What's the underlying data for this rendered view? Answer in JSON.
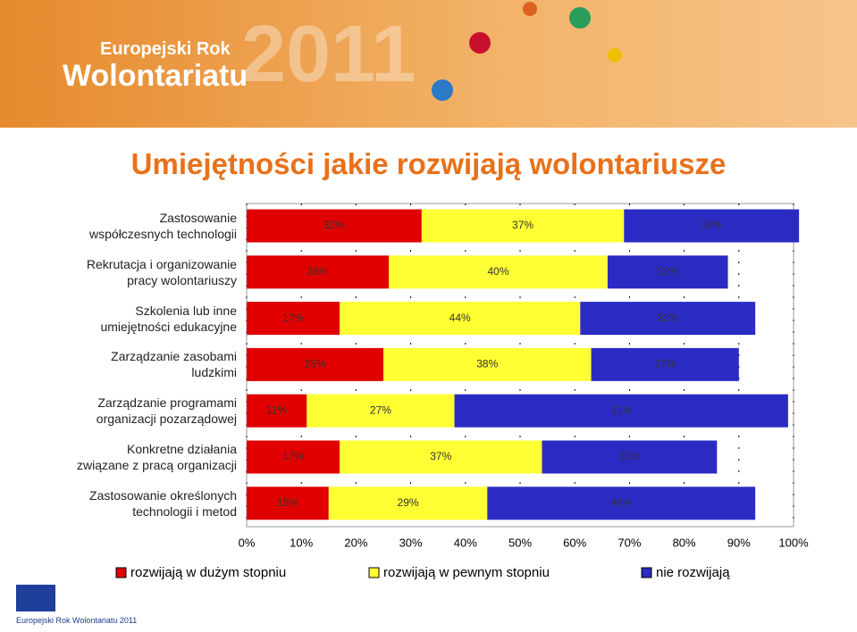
{
  "header": {
    "line1": "Europejski Rok",
    "line2": "Wolontariatu",
    "year": "2011",
    "footer_logo": "Europejski Rok Wolontariatu 2011"
  },
  "chart_data": {
    "type": "stacked-bar-horizontal",
    "title": "Umiejętności jakie rozwijają wolontariusze",
    "categories": [
      "Zastosowanie\nwspółczesnych technologii",
      "Rekrutacja i organizowanie\npracy wolontariuszy",
      "Szkolenia lub inne\numiejętności edukacyjne",
      "Zarządzanie zasobami\nludzkimi",
      "Zarządzanie programami\norganizacji pozarządowej",
      "Konkretne działania\nzwiązane z pracą organizacji",
      "Zastosowanie określonych\ntechnologii i metod"
    ],
    "series": [
      {
        "name": "rozwijają w dużym stopniu",
        "color": "#e00000",
        "values": [
          32,
          26,
          17,
          25,
          11,
          17,
          15
        ],
        "value_labels": [
          "32%",
          "26%",
          "17%",
          "25%",
          "11%",
          "17%",
          "15%"
        ]
      },
      {
        "name": "rozwijają w pewnym stopniu",
        "color": "#ffff33",
        "values": [
          37,
          40,
          44,
          38,
          27,
          37,
          29
        ],
        "value_labels": [
          "37%",
          "40%",
          "44%",
          "38%",
          "27%",
          "37%",
          "29%"
        ]
      },
      {
        "name": "nie rozwijają",
        "color": "#2b2bc4",
        "values": [
          32,
          22,
          32,
          27,
          61,
          32,
          49
        ],
        "value_labels": [
          "32%",
          "22%",
          "32%",
          "27%",
          "61%",
          "32%",
          "49%"
        ]
      }
    ],
    "xlim": [
      0,
      100
    ],
    "xticks": [
      {
        "value": 0,
        "label": "0%"
      },
      {
        "value": 10,
        "label": "10%"
      },
      {
        "value": 20,
        "label": "20%"
      },
      {
        "value": 30,
        "label": "30%"
      },
      {
        "value": 40,
        "label": "40%"
      },
      {
        "value": 50,
        "label": "50%"
      },
      {
        "value": 60,
        "label": "60%"
      },
      {
        "value": 70,
        "label": "70%"
      },
      {
        "value": 80,
        "label": "80%"
      },
      {
        "value": 90,
        "label": "90%"
      },
      {
        "value": 100,
        "label": "100%"
      }
    ],
    "grid": true,
    "legend": "bottom"
  }
}
